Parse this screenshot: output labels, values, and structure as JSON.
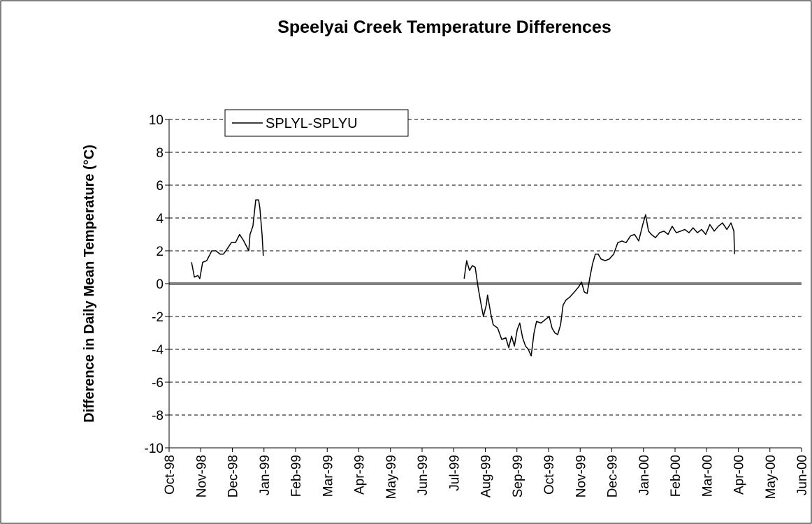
{
  "chart_data": {
    "type": "line",
    "title": "Speelyai Creek Temperature Differences",
    "y_label": "Difference in Daily Mean Temperature (°C)",
    "x": [
      0.71,
      0.8,
      0.91,
      0.97,
      1.06,
      1.19,
      1.35,
      1.48,
      1.61,
      1.72,
      1.83,
      1.97,
      2.1,
      2.23,
      2.36,
      2.52,
      2.56,
      2.65,
      2.74,
      2.83,
      2.87,
      2.94,
      2.98,
      6.0,
      9.33,
      9.41,
      9.5,
      9.59,
      9.68,
      9.77,
      9.86,
      9.94,
      10.03,
      10.07,
      10.17,
      10.25,
      10.39,
      10.52,
      10.65,
      10.74,
      10.83,
      10.92,
      11.01,
      11.09,
      11.18,
      11.27,
      11.36,
      11.45,
      11.54,
      11.62,
      11.76,
      11.89,
      12.02,
      12.11,
      12.2,
      12.29,
      12.38,
      12.46,
      12.55,
      12.68,
      12.82,
      12.95,
      13.04,
      13.13,
      13.22,
      13.3,
      13.39,
      13.48,
      13.57,
      13.66,
      13.79,
      13.92,
      14.06,
      14.19,
      14.32,
      14.45,
      14.59,
      14.72,
      14.85,
      14.98,
      15.07,
      15.16,
      15.25,
      15.38,
      15.51,
      15.65,
      15.78,
      15.91,
      16.04,
      16.18,
      16.31,
      16.44,
      16.57,
      16.71,
      16.84,
      16.97,
      17.1,
      17.24,
      17.37,
      17.5,
      17.64,
      17.77,
      17.86,
      17.88
    ],
    "series": [
      {
        "name": "SPLYL-SPLYU",
        "color": "#000000",
        "values": [
          1.3,
          0.4,
          0.5,
          0.3,
          1.3,
          1.4,
          2.0,
          2.0,
          1.8,
          1.8,
          2.1,
          2.5,
          2.5,
          3.0,
          2.6,
          2.0,
          3.0,
          3.5,
          5.1,
          5.1,
          4.6,
          3.0,
          1.7,
          null,
          0.3,
          1.4,
          0.8,
          1.1,
          1.0,
          -0.2,
          -1.2,
          -2.0,
          -1.3,
          -0.7,
          -1.8,
          -2.5,
          -2.7,
          -3.4,
          -3.3,
          -3.9,
          -3.2,
          -3.8,
          -2.8,
          -2.4,
          -3.3,
          -3.8,
          -4.0,
          -4.4,
          -3.0,
          -2.3,
          -2.4,
          -2.2,
          -2.0,
          -2.7,
          -3.0,
          -3.1,
          -2.5,
          -1.3,
          -1.0,
          -0.8,
          -0.5,
          -0.2,
          0.1,
          -0.5,
          -0.6,
          0.3,
          1.2,
          1.8,
          1.8,
          1.5,
          1.4,
          1.5,
          1.8,
          2.5,
          2.6,
          2.5,
          2.9,
          3.0,
          2.6,
          3.6,
          4.2,
          3.2,
          3.0,
          2.8,
          3.1,
          3.2,
          3.0,
          3.5,
          3.1,
          3.2,
          3.3,
          3.1,
          3.4,
          3.1,
          3.3,
          3.0,
          3.6,
          3.2,
          3.5,
          3.7,
          3.3,
          3.7,
          3.2,
          1.8
        ]
      }
    ],
    "xlim": [
      0,
      20
    ],
    "xticks": [
      {
        "value": 0,
        "label": "Oct-98"
      },
      {
        "value": 1,
        "label": "Nov-98"
      },
      {
        "value": 2,
        "label": "Dec-98"
      },
      {
        "value": 3,
        "label": "Jan-99"
      },
      {
        "value": 4,
        "label": "Feb-99"
      },
      {
        "value": 5,
        "label": "Mar-99"
      },
      {
        "value": 6,
        "label": "Apr-99"
      },
      {
        "value": 7,
        "label": "May-99"
      },
      {
        "value": 8,
        "label": "Jun-99"
      },
      {
        "value": 9,
        "label": "Jul-99"
      },
      {
        "value": 10,
        "label": "Aug-99"
      },
      {
        "value": 11,
        "label": "Sep-99"
      },
      {
        "value": 12,
        "label": "Oct-99"
      },
      {
        "value": 13,
        "label": "Nov-99"
      },
      {
        "value": 14,
        "label": "Dec-99"
      },
      {
        "value": 15,
        "label": "Jan-00"
      },
      {
        "value": 16,
        "label": "Feb-00"
      },
      {
        "value": 17,
        "label": "Mar-00"
      },
      {
        "value": 18,
        "label": "Apr-00"
      },
      {
        "value": 19,
        "label": "May-00"
      },
      {
        "value": 20,
        "label": "Jun-00"
      }
    ],
    "ylim": [
      -10,
      10
    ],
    "yticks": [
      -10,
      -8,
      -6,
      -4,
      -2,
      0,
      2,
      4,
      6,
      8,
      10
    ],
    "grid": true,
    "legend": "upper-left"
  }
}
